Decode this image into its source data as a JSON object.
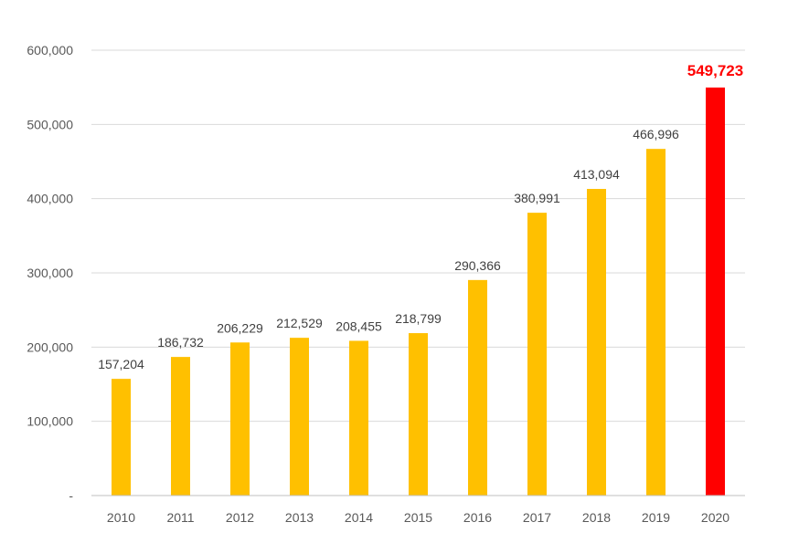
{
  "chart_data": {
    "type": "bar",
    "categories": [
      "2010",
      "2011",
      "2012",
      "2013",
      "2014",
      "2015",
      "2016",
      "2017",
      "2018",
      "2019",
      "2020"
    ],
    "values": [
      157204,
      186732,
      206229,
      212529,
      208455,
      218799,
      290366,
      380991,
      413094,
      466996,
      549723
    ],
    "data_labels": [
      "157,204",
      "186,732",
      "206,229",
      "212,529",
      "208,455",
      "218,799",
      "290,366",
      "380,991",
      "413,094",
      "466,996",
      "549,723"
    ],
    "y_ticks": [
      0,
      100000,
      200000,
      300000,
      400000,
      500000,
      600000
    ],
    "y_tick_labels": [
      "-",
      "100,000",
      "200,000",
      "300,000",
      "400,000",
      "500,000",
      "600,000"
    ],
    "ylim": [
      0,
      600000
    ],
    "grid": true,
    "legend": "none",
    "highlight_index": 10,
    "colors": {
      "bar": "#FFC000",
      "highlight": "#FF0000",
      "grid": "#D9D9D9",
      "axis": "#BFBFBF",
      "tick_text": "#595959",
      "label_text": "#404040"
    }
  }
}
